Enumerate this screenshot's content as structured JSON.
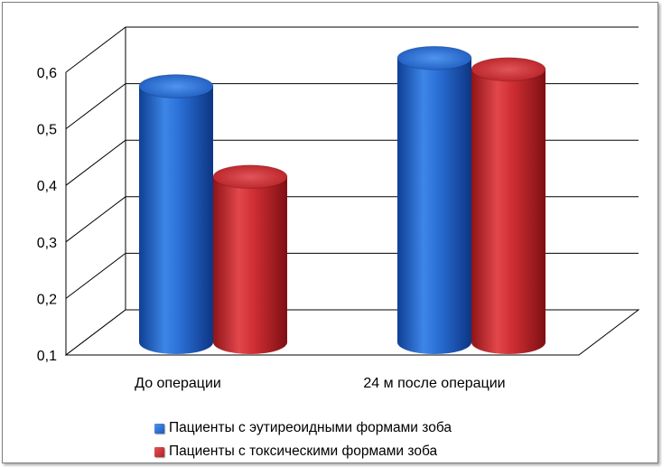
{
  "chart_data": {
    "type": "bar",
    "categories": [
      "До операции",
      "24 м после операции"
    ],
    "series": [
      {
        "name": "Пациенты с эутиреоидными формами зоба",
        "values": [
          0.54,
          0.59
        ],
        "color": "#1f5fc8"
      },
      {
        "name": "Пациенты с токсическими формами зоба",
        "values": [
          0.38,
          0.57
        ],
        "color": "#c8262b"
      }
    ],
    "ylim": [
      0.1,
      0.6
    ],
    "yticks": [
      "0,1",
      "0,2",
      "0,3",
      "0,4",
      "0,5",
      "0,6"
    ],
    "grid": true,
    "legend_position": "bottom",
    "style": "3d-cylinder"
  }
}
